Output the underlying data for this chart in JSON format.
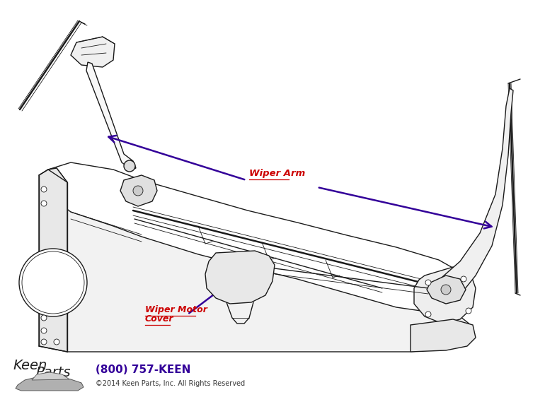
{
  "bg_color": "#ffffff",
  "fig_width": 7.7,
  "fig_height": 5.79,
  "dpi": 100,
  "label_wiper_arm": "Wiper Arm",
  "label_wiper_motor_line1": "Wiper Motor",
  "label_wiper_motor_line2": "Cover",
  "label_color": "#cc0000",
  "arrow_color": "#330099",
  "footer_phone": "(800) 757-KEEN",
  "footer_phone_color": "#330099",
  "footer_copy": "©2014 Keen Parts, Inc. All Rights Reserved",
  "footer_copy_color": "#333333",
  "line_color": "#1a1a1a"
}
